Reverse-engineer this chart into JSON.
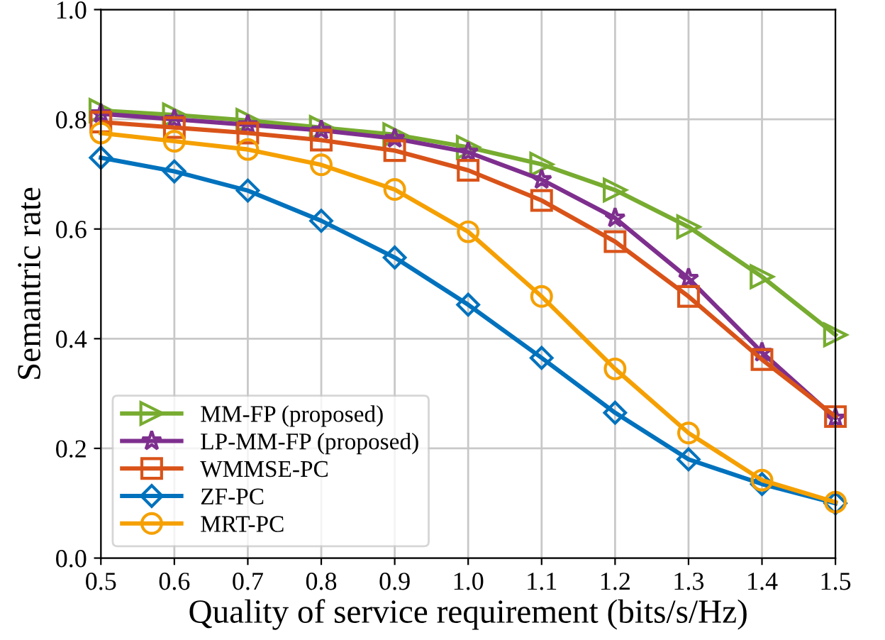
{
  "chart_data": {
    "type": "line",
    "xlabel": "Quality of service requirement (bits/s/Hz)",
    "ylabel": "Semantric rate",
    "x": [
      0.5,
      0.6,
      0.7,
      0.8,
      0.9,
      1.0,
      1.1,
      1.2,
      1.3,
      1.4,
      1.5
    ],
    "series": [
      {
        "name": "MM-FP (proposed)",
        "color": "#77ac30",
        "marker": "triangle",
        "values": [
          0.816,
          0.808,
          0.798,
          0.785,
          0.772,
          0.749,
          0.718,
          0.671,
          0.604,
          0.513,
          0.407
        ]
      },
      {
        "name": "LP-MM-FP (proposed)",
        "color": "#7e2f8e",
        "marker": "star",
        "values": [
          0.81,
          0.8,
          0.79,
          0.78,
          0.765,
          0.74,
          0.69,
          0.62,
          0.51,
          0.375,
          0.255
        ]
      },
      {
        "name": "WMMSE-PC",
        "color": "#d95319",
        "marker": "square",
        "values": [
          0.795,
          0.785,
          0.775,
          0.762,
          0.743,
          0.707,
          0.652,
          0.577,
          0.477,
          0.362,
          0.258
        ]
      },
      {
        "name": "ZF-PC",
        "color": "#0072bd",
        "marker": "diamond",
        "values": [
          0.73,
          0.705,
          0.67,
          0.615,
          0.548,
          0.462,
          0.365,
          0.265,
          0.18,
          0.135,
          0.1
        ]
      },
      {
        "name": "MRT-PC",
        "color": "#f5a000",
        "marker": "circle",
        "values": [
          0.775,
          0.76,
          0.745,
          0.717,
          0.672,
          0.595,
          0.477,
          0.345,
          0.228,
          0.142,
          0.102
        ]
      }
    ],
    "xlim": [
      0.5,
      1.5
    ],
    "ylim": [
      0.0,
      1.0
    ],
    "xticks": [
      0.5,
      0.6,
      0.7,
      0.8,
      0.9,
      {
        "value": 1,
        "label": "1.0"
      },
      1.1,
      1.2,
      1.3,
      1.4,
      1.5
    ],
    "yticks": [
      {
        "value": 0,
        "label": "0.0"
      },
      0.2,
      0.4,
      0.6,
      0.8,
      {
        "value": 1,
        "label": "1.0"
      }
    ],
    "grid": true,
    "legend": "bottom left",
    "line_style": "solid"
  }
}
